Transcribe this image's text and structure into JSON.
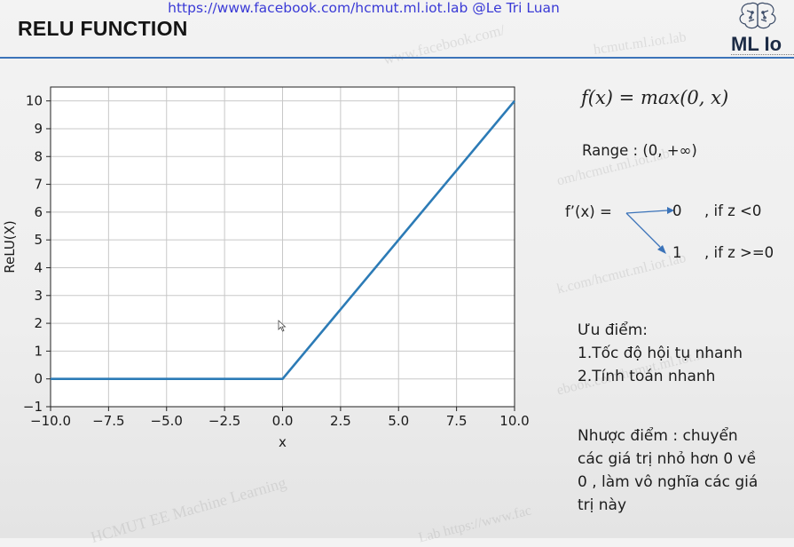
{
  "header": {
    "link_text": "https://www.facebook.com/hcmut.ml.iot.lab @Le Tri Luan",
    "title": "RELU FUNCTION",
    "logo_text": "ML Io"
  },
  "watermarks": [
    "www.facebook.com/",
    "hcmut.ml.iot.lab",
    "om/hcmut.ml.iot.lab",
    "k.com/hcmut.ml.iot.lab",
    "ebook.com/hcmut.ml.iot.lab",
    "HCMUT EE Machine Learning",
    "Lab https://www.fac"
  ],
  "formula": "f(x) = max(0, x)",
  "range_text": "Range : (0, +∞)",
  "derivative": {
    "label": "f’(x) =",
    "branch_1_value": "0",
    "branch_1_cond": ", if z <0",
    "branch_2_value": "1",
    "branch_2_cond": ", if z >=0"
  },
  "pros": {
    "heading": "Ưu điểm:",
    "items": [
      "1.Tốc độ hội tụ nhanh",
      "2.Tính toán nhanh"
    ]
  },
  "cons": {
    "lines": [
      "Nhược điểm : chuyển",
      "các giá trị nhỏ hơn 0 về",
      "0 , làm vô nghĩa các giá",
      "trị này"
    ]
  },
  "colors": {
    "line": "#2c7bb6",
    "title_rule": "#3b73b9",
    "link": "#3a3ad6"
  },
  "chart_data": {
    "type": "line",
    "xlabel": "x",
    "ylabel": "ReLU(X)",
    "xlim": [
      -10,
      10
    ],
    "ylim": [
      -1,
      10.5
    ],
    "xticks": [
      -10.0,
      -7.5,
      -5.0,
      -2.5,
      0.0,
      2.5,
      5.0,
      7.5,
      10.0
    ],
    "xtick_labels": [
      "−10.0",
      "−7.5",
      "−5.0",
      "−2.5",
      "0.0",
      "2.5",
      "5.0",
      "7.5",
      "10.0"
    ],
    "yticks": [
      -1,
      0,
      1,
      2,
      3,
      4,
      5,
      6,
      7,
      8,
      9,
      10
    ],
    "ytick_labels": [
      "−1",
      "0",
      "1",
      "2",
      "3",
      "4",
      "5",
      "6",
      "7",
      "8",
      "9",
      "10"
    ],
    "grid": true,
    "series": [
      {
        "x": [
          -10,
          0,
          10
        ],
        "y": [
          0,
          0,
          10
        ]
      }
    ]
  }
}
